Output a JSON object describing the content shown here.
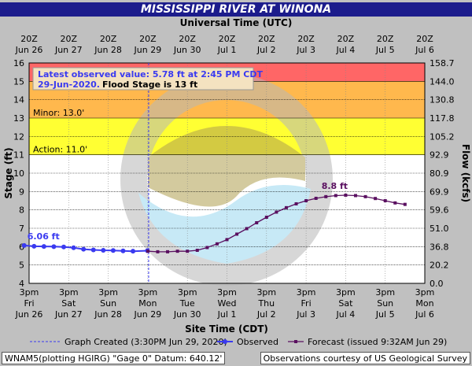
{
  "title": "MISSISSIPPI RIVER AT WINONA",
  "top_axis_title": "Universal Time (UTC)",
  "bottom_axis_title": "Site Time (CDT)",
  "left_axis_title": "Stage (ft)",
  "right_axis_title": "Flow (kcfs)",
  "top_ticks": [
    {
      "line1": "20Z",
      "line2": "Jun 26"
    },
    {
      "line1": "20Z",
      "line2": "Jun 27"
    },
    {
      "line1": "20Z",
      "line2": "Jun 28"
    },
    {
      "line1": "20Z",
      "line2": "Jun 29"
    },
    {
      "line1": "20Z",
      "line2": "Jun 30"
    },
    {
      "line1": "20Z",
      "line2": "Jul 1"
    },
    {
      "line1": "20Z",
      "line2": "Jul 2"
    },
    {
      "line1": "20Z",
      "line2": "Jul 3"
    },
    {
      "line1": "20Z",
      "line2": "Jul 4"
    },
    {
      "line1": "20Z",
      "line2": "Jul 5"
    },
    {
      "line1": "20Z",
      "line2": "Jul 6"
    }
  ],
  "bottom_ticks": [
    {
      "line1": "3pm",
      "line2": "Fri",
      "line3": "Jun 26"
    },
    {
      "line1": "3pm",
      "line2": "Sat",
      "line3": "Jun 27"
    },
    {
      "line1": "3pm",
      "line2": "Sun",
      "line3": "Jun 28"
    },
    {
      "line1": "3pm",
      "line2": "Mon",
      "line3": "Jun 29"
    },
    {
      "line1": "3pm",
      "line2": "Tue",
      "line3": "Jun 30"
    },
    {
      "line1": "3pm",
      "line2": "Wed",
      "line3": "Jul 1"
    },
    {
      "line1": "3pm",
      "line2": "Thu",
      "line3": "Jul 2"
    },
    {
      "line1": "3pm",
      "line2": "Fri",
      "line3": "Jul 3"
    },
    {
      "line1": "3pm",
      "line2": "Sat",
      "line3": "Jul 4"
    },
    {
      "line1": "3pm",
      "line2": "Sun",
      "line3": "Jul 5"
    },
    {
      "line1": "3pm",
      "line2": "Mon",
      "line3": "Jul 6"
    }
  ],
  "y_ticks": [
    4,
    5,
    6,
    7,
    8,
    9,
    10,
    11,
    12,
    13,
    14,
    15,
    16
  ],
  "flow_ticks": [
    {
      "stage": 4,
      "label": "0.0"
    },
    {
      "stage": 5,
      "label": "20.2"
    },
    {
      "stage": 6,
      "label": "36.8"
    },
    {
      "stage": 7,
      "label": "51.0"
    },
    {
      "stage": 8,
      "label": "59.6"
    },
    {
      "stage": 9,
      "label": "69.9"
    },
    {
      "stage": 10,
      "label": "80.9"
    },
    {
      "stage": 11,
      "label": "92.9"
    },
    {
      "stage": 12,
      "label": "105.2"
    },
    {
      "stage": 13,
      "label": "117.8"
    },
    {
      "stage": 14,
      "label": "130.8"
    },
    {
      "stage": 15,
      "label": "144.0"
    },
    {
      "stage": 16,
      "label": "158.7"
    }
  ],
  "bands": [
    {
      "from": 11,
      "to": 13,
      "color": "#ffff33",
      "label": "Action: 11.0'"
    },
    {
      "from": 13,
      "to": 15,
      "color": "#ffb84d",
      "label": "Minor: 13.0'"
    },
    {
      "from": 15,
      "to": 16,
      "color": "#ff6666",
      "label": ""
    }
  ],
  "latest_box": {
    "line1": "Latest observed value: 5.78 ft at 2:45 PM CDT",
    "line2a": "29-Jun-2020.",
    "line2b": "Flood Stage is 13 ft"
  },
  "observed_label": "6.06 ft",
  "forecast_peak_label": "8.8 ft",
  "legend": {
    "created": "Graph Created (3:30PM Jun 29, 2020)",
    "observed": "Observed",
    "forecast": "Forecast (issued 9:32AM Jun 29)"
  },
  "footer_left": "WNAM5(plotting HGIRG) \"Gage 0\" Datum: 640.12'",
  "footer_right": "Observations courtesy of US Geological Survey",
  "colors": {
    "observed": "#3a3af0",
    "forecast": "#5a1060",
    "title_bar": "#1c1c8c",
    "plot_bg": "#ffffff",
    "created_line": "#3a3af0"
  },
  "chart_data": {
    "type": "line",
    "title": "MISSISSIPPI RIVER AT WINONA",
    "xlabel": "Site Time (CDT)",
    "ylabel": "Stage (ft)",
    "y2label": "Flow (kcfs)",
    "ylim": [
      4,
      16
    ],
    "xlim": [
      "2020-06-26 15:00",
      "2020-07-06 15:00"
    ],
    "graph_created": "2020-06-29 15:30",
    "series": [
      {
        "name": "Observed",
        "points": [
          {
            "x": "2020-06-26 12:00",
            "y": 6.06
          },
          {
            "x": "2020-06-26 18:00",
            "y": 6.02
          },
          {
            "x": "2020-06-27 00:00",
            "y": 6.01
          },
          {
            "x": "2020-06-27 06:00",
            "y": 6.0
          },
          {
            "x": "2020-06-27 12:00",
            "y": 5.98
          },
          {
            "x": "2020-06-27 18:00",
            "y": 5.94
          },
          {
            "x": "2020-06-28 00:00",
            "y": 5.86
          },
          {
            "x": "2020-06-28 06:00",
            "y": 5.82
          },
          {
            "x": "2020-06-28 12:00",
            "y": 5.8
          },
          {
            "x": "2020-06-28 18:00",
            "y": 5.79
          },
          {
            "x": "2020-06-29 00:00",
            "y": 5.77
          },
          {
            "x": "2020-06-29 06:00",
            "y": 5.75
          },
          {
            "x": "2020-06-29 14:45",
            "y": 5.78
          }
        ]
      },
      {
        "name": "Forecast",
        "points": [
          {
            "x": "2020-06-29 15:00",
            "y": 5.75
          },
          {
            "x": "2020-06-29 21:00",
            "y": 5.72
          },
          {
            "x": "2020-06-30 03:00",
            "y": 5.72
          },
          {
            "x": "2020-06-30 09:00",
            "y": 5.75
          },
          {
            "x": "2020-06-30 15:00",
            "y": 5.75
          },
          {
            "x": "2020-06-30 21:00",
            "y": 5.8
          },
          {
            "x": "2020-07-01 03:00",
            "y": 5.95
          },
          {
            "x": "2020-07-01 09:00",
            "y": 6.15
          },
          {
            "x": "2020-07-01 15:00",
            "y": 6.38
          },
          {
            "x": "2020-07-01 21:00",
            "y": 6.68
          },
          {
            "x": "2020-07-02 03:00",
            "y": 6.98
          },
          {
            "x": "2020-07-02 09:00",
            "y": 7.3
          },
          {
            "x": "2020-07-02 15:00",
            "y": 7.6
          },
          {
            "x": "2020-07-02 21:00",
            "y": 7.88
          },
          {
            "x": "2020-07-03 03:00",
            "y": 8.12
          },
          {
            "x": "2020-07-03 09:00",
            "y": 8.33
          },
          {
            "x": "2020-07-03 15:00",
            "y": 8.5
          },
          {
            "x": "2020-07-03 21:00",
            "y": 8.63
          },
          {
            "x": "2020-07-04 03:00",
            "y": 8.72
          },
          {
            "x": "2020-07-04 09:00",
            "y": 8.78
          },
          {
            "x": "2020-07-04 15:00",
            "y": 8.8
          },
          {
            "x": "2020-07-04 21:00",
            "y": 8.78
          },
          {
            "x": "2020-07-05 03:00",
            "y": 8.72
          },
          {
            "x": "2020-07-05 09:00",
            "y": 8.62
          },
          {
            "x": "2020-07-05 15:00",
            "y": 8.5
          },
          {
            "x": "2020-07-05 21:00",
            "y": 8.38
          },
          {
            "x": "2020-07-06 03:00",
            "y": 8.3
          }
        ]
      }
    ]
  }
}
